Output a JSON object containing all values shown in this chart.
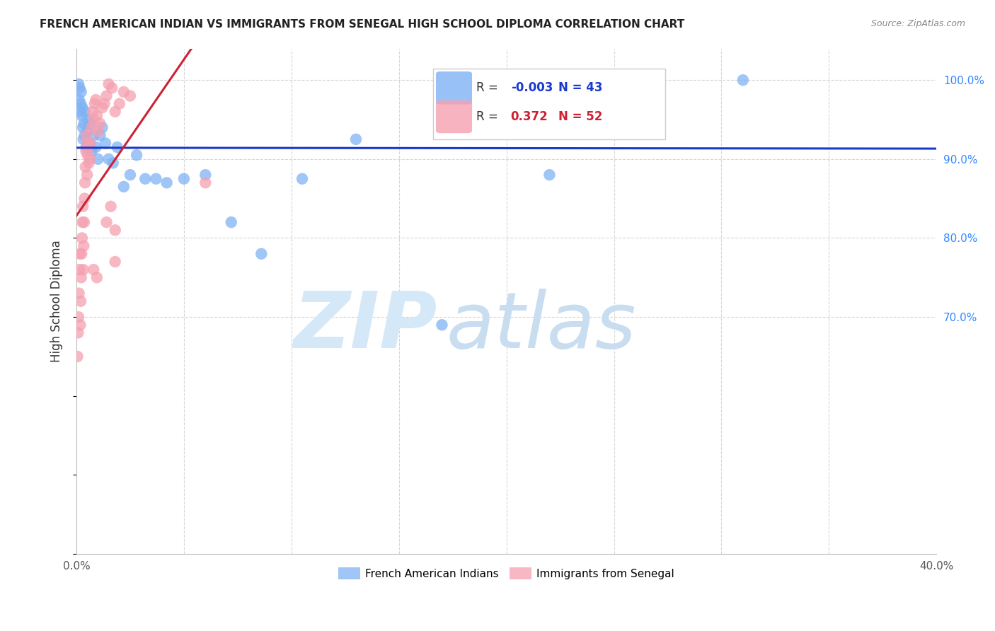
{
  "title": "FRENCH AMERICAN INDIAN VS IMMIGRANTS FROM SENEGAL HIGH SCHOOL DIPLOMA CORRELATION CHART",
  "source": "Source: ZipAtlas.com",
  "ylabel": "High School Diploma",
  "xlim": [
    0.0,
    0.4
  ],
  "ylim": [
    0.4,
    1.04
  ],
  "yticks_right": [
    1.0,
    0.9,
    0.8,
    0.7
  ],
  "yticklabels_right": [
    "100.0%",
    "90.0%",
    "80.0%",
    "70.0%"
  ],
  "grid_color": "#cccccc",
  "blue_color": "#7fb3f5",
  "pink_color": "#f5a0b0",
  "trend_blue_color": "#1a3acc",
  "trend_pink_color": "#cc2233",
  "watermark_color": "#ddeeff",
  "legend_R_blue": "-0.003",
  "legend_N_blue": "43",
  "legend_R_pink": "0.372",
  "legend_N_pink": "52",
  "legend_label_blue": "French American Indians",
  "legend_label_pink": "Immigrants from Senegal",
  "blue_x": [
    0.001,
    0.0012,
    0.0015,
    0.0018,
    0.002,
    0.0022,
    0.0025,
    0.0028,
    0.003,
    0.0032,
    0.0035,
    0.0038,
    0.004,
    0.0045,
    0.005,
    0.0055,
    0.006,
    0.0065,
    0.007,
    0.008,
    0.009,
    0.01,
    0.011,
    0.012,
    0.0135,
    0.015,
    0.017,
    0.019,
    0.022,
    0.025,
    0.028,
    0.032,
    0.037,
    0.042,
    0.05,
    0.06,
    0.072,
    0.086,
    0.105,
    0.13,
    0.17,
    0.22,
    0.31
  ],
  "blue_y": [
    0.995,
    0.975,
    0.99,
    0.96,
    0.97,
    0.985,
    0.955,
    0.965,
    0.94,
    0.925,
    0.945,
    0.93,
    0.96,
    0.915,
    0.935,
    0.95,
    0.92,
    0.945,
    0.91,
    0.93,
    0.915,
    0.9,
    0.93,
    0.94,
    0.92,
    0.9,
    0.895,
    0.915,
    0.865,
    0.88,
    0.905,
    0.875,
    0.875,
    0.87,
    0.875,
    0.88,
    0.82,
    0.78,
    0.875,
    0.925,
    0.69,
    0.88,
    1.0
  ],
  "pink_x": [
    0.0005,
    0.0008,
    0.001,
    0.0012,
    0.0014,
    0.0016,
    0.0018,
    0.002,
    0.0022,
    0.0024,
    0.0026,
    0.0028,
    0.003,
    0.0032,
    0.0034,
    0.0036,
    0.0038,
    0.004,
    0.0042,
    0.0044,
    0.0046,
    0.0048,
    0.005,
    0.0052,
    0.0055,
    0.0058,
    0.0062,
    0.0066,
    0.007,
    0.0075,
    0.008,
    0.0085,
    0.009,
    0.0095,
    0.01,
    0.011,
    0.012,
    0.013,
    0.014,
    0.015,
    0.0165,
    0.018,
    0.02,
    0.022,
    0.025,
    0.014,
    0.016,
    0.018,
    0.06,
    0.008,
    0.0095,
    0.018
  ],
  "pink_y": [
    0.65,
    0.68,
    0.7,
    0.73,
    0.76,
    0.78,
    0.69,
    0.72,
    0.75,
    0.78,
    0.8,
    0.82,
    0.84,
    0.76,
    0.79,
    0.82,
    0.85,
    0.87,
    0.89,
    0.91,
    0.93,
    0.92,
    0.88,
    0.905,
    0.915,
    0.895,
    0.9,
    0.92,
    0.94,
    0.96,
    0.95,
    0.97,
    0.975,
    0.955,
    0.935,
    0.945,
    0.965,
    0.97,
    0.98,
    0.995,
    0.99,
    0.96,
    0.97,
    0.985,
    0.98,
    0.82,
    0.84,
    0.81,
    0.87,
    0.76,
    0.75,
    0.77
  ]
}
